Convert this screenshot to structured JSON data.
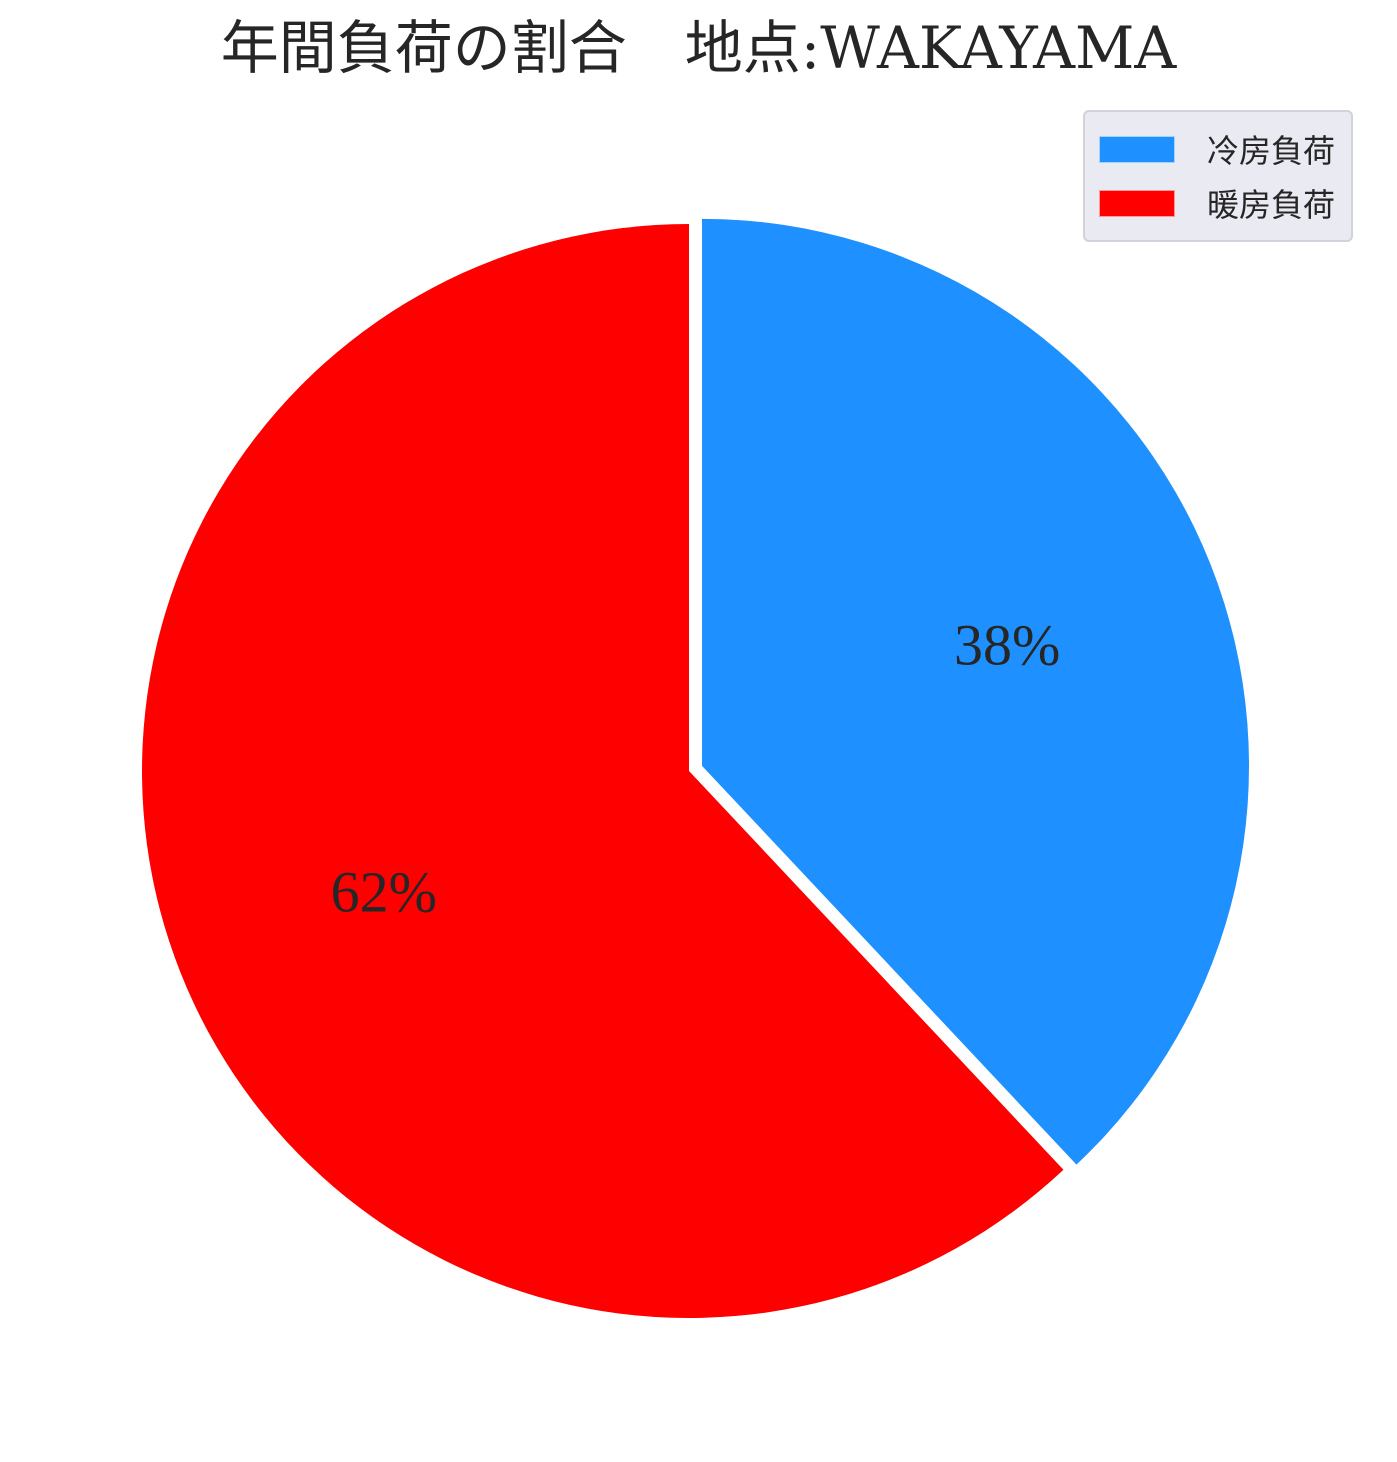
{
  "chart_data": {
    "type": "pie",
    "title": "年間負荷の割合　地点:WAKAYAMA",
    "slices": [
      {
        "label": "冷房負荷",
        "value": 38,
        "display": "38%",
        "color": "#1f90ff",
        "exploded": true
      },
      {
        "label": "暖房負荷",
        "value": 62,
        "display": "62%",
        "color": "#ff0000",
        "exploded": false
      }
    ],
    "start_angle_deg": 90,
    "direction": "clockwise",
    "legend_position": "top-right"
  }
}
